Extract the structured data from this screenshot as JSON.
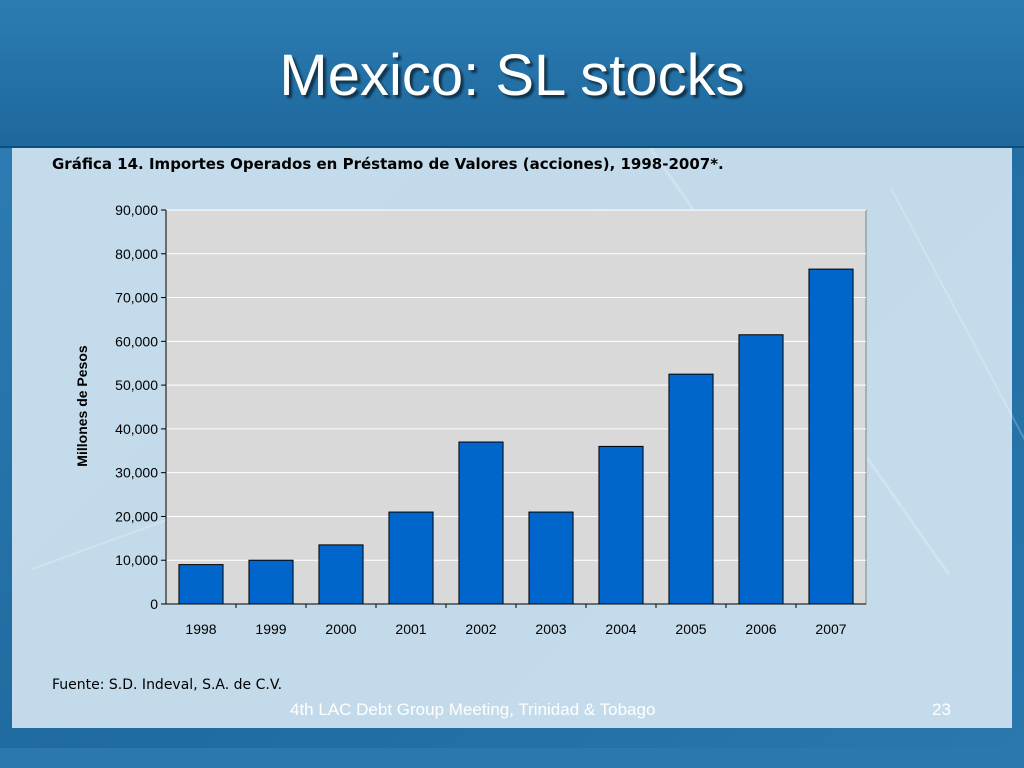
{
  "slide": {
    "title": "Mexico: SL stocks",
    "footer": "4th LAC Debt Group Meeting, Trinidad & Tobago",
    "page_number": "23",
    "source": "Fuente: S.D. Indeval, S.A. de C.V."
  },
  "chart_data": {
    "type": "bar",
    "title": "Gráfica 14. Importes Operados en Préstamo de Valores (acciones), 1998-2007*.",
    "categories": [
      "1998",
      "1999",
      "2000",
      "2001",
      "2002",
      "2003",
      "2004",
      "2005",
      "2006",
      "2007"
    ],
    "values": [
      9000,
      10000,
      13500,
      21000,
      37000,
      21000,
      36000,
      52500,
      61500,
      76500
    ],
    "ylabel": "Millones de Pesos",
    "xlabel": "",
    "ylim": [
      0,
      90000
    ],
    "yticks": [
      "0",
      "10,000",
      "20,000",
      "30,000",
      "40,000",
      "50,000",
      "60,000",
      "70,000",
      "80,000",
      "90,000"
    ],
    "ytick_values": [
      0,
      10000,
      20000,
      30000,
      40000,
      50000,
      60000,
      70000,
      80000,
      90000
    ],
    "grid": true,
    "colors": {
      "bar": "#0066cc",
      "plot_bg": "#d9d9d9",
      "grid": "#ffffff"
    }
  }
}
